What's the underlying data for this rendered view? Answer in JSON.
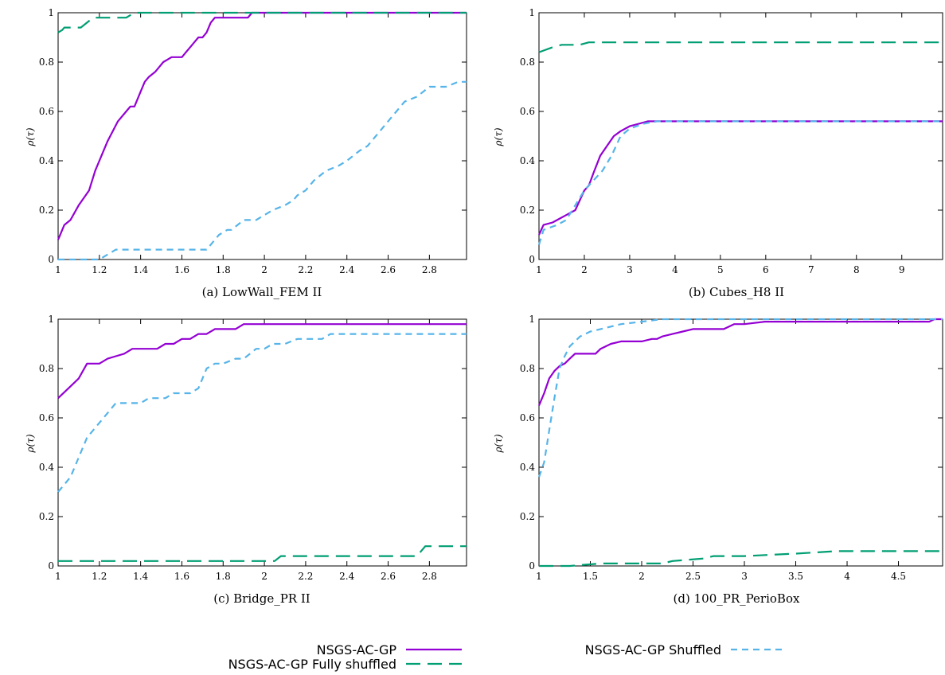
{
  "colors": {
    "NSGS-AC-GP": "#9400d3",
    "NSGS-AC-GP Fully shuffled": "#009e73",
    "NSGS-AC-GP Shuffled": "#56b4e9"
  },
  "legend": {
    "placement": "bottom",
    "entries": [
      {
        "label": "NSGS-AC-GP",
        "style": "solid",
        "color": "#9400d3"
      },
      {
        "label": "NSGS-AC-GP Fully shuffled",
        "style": "long-dash",
        "color": "#009e73"
      },
      {
        "label": "NSGS-AC-GP Shuffled",
        "style": "short-dash",
        "color": "#56b4e9"
      }
    ]
  },
  "chart_data": [
    {
      "type": "line",
      "caption": "(a) LowWall_FEM II",
      "ylabel": "ρ(τ)",
      "xlim": [
        1,
        2.98
      ],
      "ylim": [
        0,
        1
      ],
      "xticks": [
        "1",
        "1.2",
        "1.4",
        "1.6",
        "1.8",
        "2",
        "2.2",
        "2.4",
        "2.6",
        "2.8"
      ],
      "yticks": [
        "0",
        "0.2",
        "0.4",
        "0.6",
        "0.8",
        "1"
      ],
      "series": [
        {
          "name": "NSGS-AC-GP",
          "x": [
            1.0,
            1.03,
            1.06,
            1.1,
            1.15,
            1.18,
            1.2,
            1.24,
            1.29,
            1.33,
            1.35,
            1.37,
            1.4,
            1.42,
            1.44,
            1.47,
            1.49,
            1.51,
            1.53,
            1.55,
            1.58,
            1.6,
            1.62,
            1.64,
            1.66,
            1.68,
            1.7,
            1.72,
            1.74,
            1.76,
            1.78,
            1.84,
            1.9,
            1.92,
            1.94,
            2.0,
            2.98
          ],
          "y": [
            0.08,
            0.14,
            0.16,
            0.22,
            0.28,
            0.36,
            0.4,
            0.48,
            0.56,
            0.6,
            0.62,
            0.62,
            0.68,
            0.72,
            0.74,
            0.76,
            0.78,
            0.8,
            0.81,
            0.82,
            0.82,
            0.82,
            0.84,
            0.86,
            0.88,
            0.9,
            0.9,
            0.92,
            0.96,
            0.98,
            0.98,
            0.98,
            0.98,
            0.98,
            1.0,
            1.0,
            1.0
          ]
        },
        {
          "name": "NSGS-AC-GP Fully shuffled",
          "x": [
            1.0,
            1.02,
            1.03,
            1.06,
            1.09,
            1.11,
            1.14,
            1.17,
            1.2,
            1.3,
            1.33,
            1.35,
            1.37,
            1.39,
            1.43,
            2.98
          ],
          "y": [
            0.92,
            0.93,
            0.94,
            0.94,
            0.94,
            0.94,
            0.96,
            0.98,
            0.98,
            0.98,
            0.98,
            0.99,
            1.0,
            1.0,
            1.0,
            1.0
          ]
        },
        {
          "name": "NSGS-AC-GP Shuffled",
          "x": [
            1.0,
            1.02,
            1.18,
            1.2,
            1.28,
            1.32,
            1.72,
            1.74,
            1.78,
            1.82,
            1.84,
            1.9,
            1.96,
            2.04,
            2.1,
            2.14,
            2.16,
            2.2,
            2.24,
            2.3,
            2.36,
            2.4,
            2.46,
            2.5,
            2.56,
            2.6,
            2.64,
            2.68,
            2.74,
            2.8,
            2.84,
            2.88,
            2.94,
            2.98
          ],
          "y": [
            0.0,
            0.0,
            0.0,
            0.0,
            0.04,
            0.04,
            0.04,
            0.06,
            0.1,
            0.12,
            0.12,
            0.16,
            0.16,
            0.2,
            0.22,
            0.24,
            0.26,
            0.28,
            0.32,
            0.36,
            0.38,
            0.4,
            0.44,
            0.46,
            0.52,
            0.56,
            0.6,
            0.64,
            0.66,
            0.7,
            0.7,
            0.7,
            0.72,
            0.72
          ]
        }
      ]
    },
    {
      "type": "line",
      "caption": "(b) Cubes_H8 II",
      "ylabel": "ρ(τ)",
      "xlim": [
        1,
        9.9
      ],
      "ylim": [
        0,
        1
      ],
      "xticks": [
        "1",
        "2",
        "3",
        "4",
        "5",
        "6",
        "7",
        "8",
        "9"
      ],
      "yticks": [
        "0",
        "0.2",
        "0.4",
        "0.6",
        "0.8",
        "1"
      ],
      "series": [
        {
          "name": "NSGS-AC-GP",
          "x": [
            1.0,
            1.1,
            1.3,
            1.4,
            1.6,
            1.8,
            1.9,
            2.0,
            2.1,
            2.2,
            2.35,
            2.5,
            2.65,
            2.8,
            3.0,
            3.2,
            3.4,
            4.0,
            9.9
          ],
          "y": [
            0.1,
            0.14,
            0.15,
            0.16,
            0.18,
            0.2,
            0.24,
            0.28,
            0.3,
            0.35,
            0.42,
            0.46,
            0.5,
            0.52,
            0.54,
            0.55,
            0.56,
            0.56,
            0.56
          ]
        },
        {
          "name": "NSGS-AC-GP Fully shuffled",
          "x": [
            1.0,
            1.3,
            1.5,
            1.7,
            1.9,
            2.1,
            9.9
          ],
          "y": [
            0.84,
            0.86,
            0.87,
            0.87,
            0.87,
            0.88,
            0.88
          ]
        },
        {
          "name": "NSGS-AC-GP Shuffled",
          "x": [
            1.0,
            1.1,
            1.4,
            1.6,
            1.8,
            2.0,
            2.2,
            2.4,
            2.6,
            2.8,
            3.0,
            3.3,
            3.6,
            4.0,
            9.9
          ],
          "y": [
            0.06,
            0.12,
            0.14,
            0.16,
            0.22,
            0.28,
            0.32,
            0.36,
            0.42,
            0.5,
            0.53,
            0.55,
            0.56,
            0.56,
            0.56
          ]
        }
      ]
    },
    {
      "type": "line",
      "caption": "(c) Bridge_PR II",
      "ylabel": "ρ(τ)",
      "xlim": [
        1,
        2.98
      ],
      "ylim": [
        0,
        1
      ],
      "xticks": [
        "1",
        "1.2",
        "1.4",
        "1.6",
        "1.8",
        "2",
        "2.2",
        "2.4",
        "2.6",
        "2.8"
      ],
      "yticks": [
        "0",
        "0.2",
        "0.4",
        "0.6",
        "0.8",
        "1"
      ],
      "series": [
        {
          "name": "NSGS-AC-GP",
          "x": [
            1.0,
            1.05,
            1.1,
            1.14,
            1.2,
            1.24,
            1.28,
            1.32,
            1.36,
            1.4,
            1.44,
            1.48,
            1.52,
            1.56,
            1.6,
            1.64,
            1.68,
            1.72,
            1.76,
            1.8,
            1.86,
            1.9,
            2.0,
            2.98
          ],
          "y": [
            0.68,
            0.72,
            0.76,
            0.82,
            0.82,
            0.84,
            0.85,
            0.86,
            0.88,
            0.88,
            0.88,
            0.88,
            0.9,
            0.9,
            0.92,
            0.92,
            0.94,
            0.94,
            0.96,
            0.96,
            0.96,
            0.98,
            0.98,
            0.98
          ]
        },
        {
          "name": "NSGS-AC-GP Fully shuffled",
          "x": [
            1.0,
            1.02,
            2.05,
            2.08,
            2.74,
            2.78,
            2.98
          ],
          "y": [
            0.02,
            0.02,
            0.02,
            0.04,
            0.04,
            0.08,
            0.08
          ]
        },
        {
          "name": "NSGS-AC-GP Shuffled",
          "x": [
            1.0,
            1.02,
            1.06,
            1.08,
            1.1,
            1.12,
            1.14,
            1.18,
            1.2,
            1.24,
            1.28,
            1.32,
            1.36,
            1.4,
            1.44,
            1.48,
            1.52,
            1.56,
            1.6,
            1.64,
            1.68,
            1.7,
            1.72,
            1.76,
            1.8,
            1.86,
            1.9,
            1.96,
            2.0,
            2.04,
            2.1,
            2.16,
            2.2,
            2.28,
            2.32,
            2.98
          ],
          "y": [
            0.3,
            0.32,
            0.36,
            0.4,
            0.44,
            0.48,
            0.52,
            0.56,
            0.58,
            0.62,
            0.66,
            0.66,
            0.66,
            0.66,
            0.68,
            0.68,
            0.68,
            0.7,
            0.7,
            0.7,
            0.72,
            0.76,
            0.8,
            0.82,
            0.82,
            0.84,
            0.84,
            0.88,
            0.88,
            0.9,
            0.9,
            0.92,
            0.92,
            0.92,
            0.94,
            0.94
          ]
        }
      ]
    },
    {
      "type": "line",
      "caption": "(d) 100_PR_PerioBox",
      "ylabel": "ρ(τ)",
      "xlim": [
        1,
        4.93
      ],
      "ylim": [
        0,
        1
      ],
      "xticks": [
        "1",
        "1.5",
        "2",
        "2.5",
        "3",
        "3.5",
        "4",
        "4.5"
      ],
      "yticks": [
        "0",
        "0.2",
        "0.4",
        "0.6",
        "0.8",
        "1"
      ],
      "series": [
        {
          "name": "NSGS-AC-GP",
          "x": [
            1.0,
            1.05,
            1.1,
            1.15,
            1.2,
            1.25,
            1.3,
            1.35,
            1.45,
            1.55,
            1.6,
            1.65,
            1.7,
            1.8,
            2.0,
            2.1,
            2.15,
            2.2,
            2.3,
            2.4,
            2.5,
            2.7,
            2.8,
            2.9,
            3.0,
            3.2,
            4.8,
            4.85,
            4.93
          ],
          "y": [
            0.65,
            0.7,
            0.76,
            0.79,
            0.81,
            0.82,
            0.84,
            0.86,
            0.86,
            0.86,
            0.88,
            0.89,
            0.9,
            0.91,
            0.91,
            0.92,
            0.92,
            0.93,
            0.94,
            0.95,
            0.96,
            0.96,
            0.96,
            0.98,
            0.98,
            0.99,
            0.99,
            1.0,
            1.0
          ]
        },
        {
          "name": "NSGS-AC-GP Fully shuffled",
          "x": [
            1.0,
            1.3,
            1.6,
            2.0,
            2.2,
            2.3,
            2.6,
            2.7,
            3.0,
            3.5,
            3.9,
            4.0,
            4.93
          ],
          "y": [
            0.0,
            0.0,
            0.01,
            0.01,
            0.01,
            0.02,
            0.03,
            0.04,
            0.04,
            0.05,
            0.06,
            0.06,
            0.06
          ]
        },
        {
          "name": "NSGS-AC-GP Shuffled",
          "x": [
            1.0,
            1.05,
            1.1,
            1.15,
            1.2,
            1.25,
            1.3,
            1.4,
            1.5,
            1.6,
            1.7,
            1.8,
            2.0,
            2.2,
            4.93
          ],
          "y": [
            0.36,
            0.42,
            0.55,
            0.68,
            0.8,
            0.85,
            0.89,
            0.93,
            0.95,
            0.96,
            0.97,
            0.98,
            0.99,
            1.0,
            1.0
          ]
        }
      ]
    }
  ]
}
